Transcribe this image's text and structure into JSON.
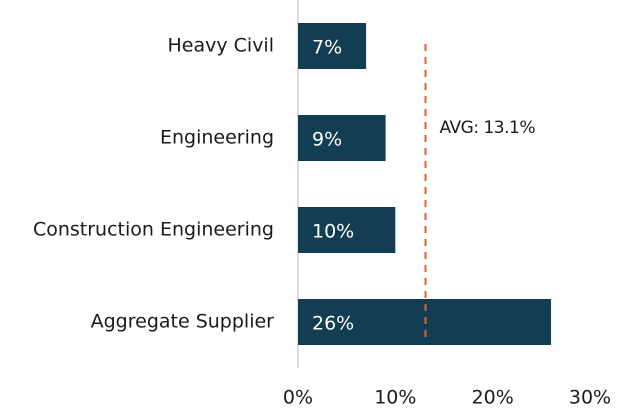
{
  "chart_data": {
    "type": "barh",
    "categories": [
      "Heavy Civil",
      "Engineering",
      "Construction Engineering",
      "Aggregate Supplier"
    ],
    "values": [
      7,
      9,
      10,
      26
    ],
    "value_labels": [
      "7%",
      "9%",
      "10%",
      "26%"
    ],
    "color": "#133d52",
    "xlim": [
      0,
      30
    ],
    "xticks": [
      {
        "value": 0,
        "label": "0%"
      },
      {
        "value": 10,
        "label": "10%"
      },
      {
        "value": 20,
        "label": "20%"
      },
      {
        "value": 30,
        "label": "30%"
      }
    ],
    "average": {
      "value": 13.1,
      "label": "AVG: 13.1%",
      "color": "#e5622b"
    }
  }
}
